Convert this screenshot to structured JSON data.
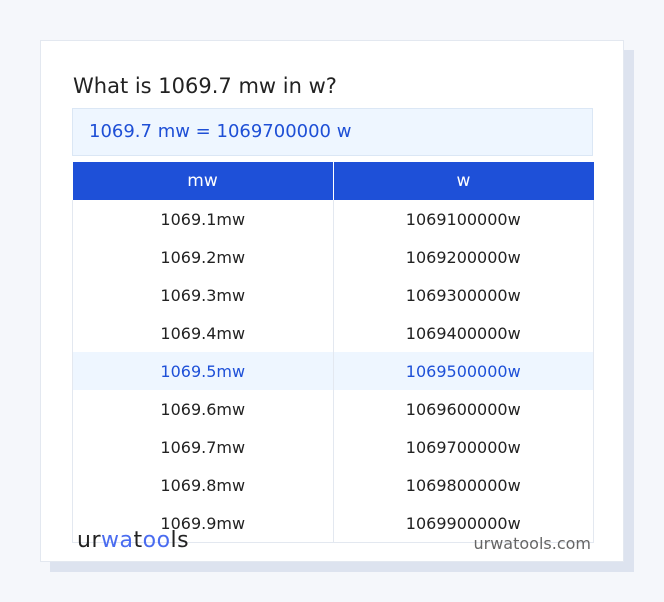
{
  "title": "What is 1069.7 mw in w?",
  "result": "1069.7 mw = 1069700000 w",
  "table": {
    "headers": [
      "mw",
      "w"
    ],
    "rows": [
      [
        "1069.1mw",
        "1069100000w"
      ],
      [
        "1069.2mw",
        "1069200000w"
      ],
      [
        "1069.3mw",
        "1069300000w"
      ],
      [
        "1069.4mw",
        "1069400000w"
      ],
      [
        "1069.5mw",
        "1069500000w"
      ],
      [
        "1069.6mw",
        "1069600000w"
      ],
      [
        "1069.7mw",
        "1069700000w"
      ],
      [
        "1069.8mw",
        "1069800000w"
      ],
      [
        "1069.9mw",
        "1069900000w"
      ]
    ],
    "highlighted_row": 4
  },
  "footer": {
    "logo": "urwatools",
    "site": "urwatools.com"
  },
  "colors": {
    "accent": "#1e50d8",
    "highlight_bg": "#eef6ff"
  }
}
